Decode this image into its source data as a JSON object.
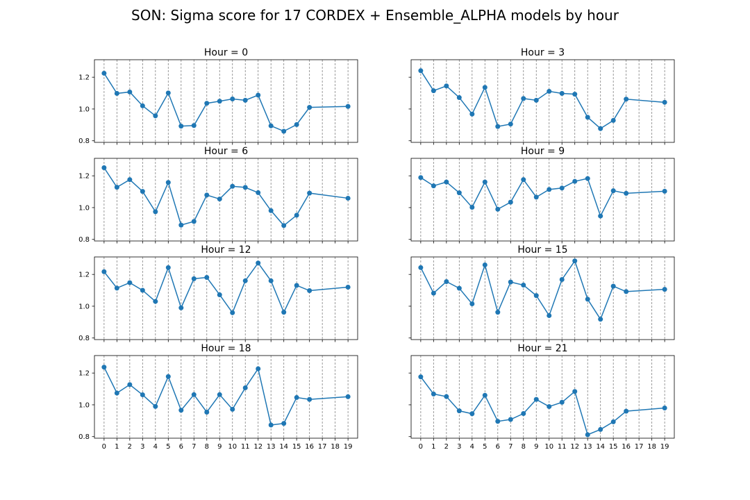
{
  "figure": {
    "suptitle": "SON: Sigma score for 17 CORDEX + Ensemble_ALPHA models by hour"
  },
  "chart_data": [
    {
      "type": "line",
      "title": "Hour = 0",
      "x": [
        0,
        1,
        2,
        3,
        4,
        5,
        6,
        7,
        8,
        9,
        10,
        11,
        12,
        13,
        14,
        15,
        16,
        19
      ],
      "values": [
        1.225,
        1.098,
        1.107,
        1.02,
        0.957,
        1.101,
        0.892,
        0.896,
        1.036,
        1.049,
        1.063,
        1.055,
        1.087,
        0.894,
        0.86,
        0.902,
        1.01,
        1.016
      ],
      "xticks": [
        0,
        1,
        2,
        3,
        4,
        5,
        6,
        7,
        8,
        9,
        10,
        11,
        12,
        13,
        14,
        15,
        16,
        17,
        18,
        19
      ],
      "yticks": [
        0.8,
        1.0,
        1.2
      ],
      "ylim": [
        0.79,
        1.31
      ],
      "xlim": [
        -0.75,
        19.75
      ]
    },
    {
      "type": "line",
      "title": "Hour = 3",
      "x": [
        0,
        1,
        2,
        3,
        4,
        5,
        6,
        7,
        8,
        9,
        10,
        11,
        12,
        13,
        14,
        15,
        16,
        19
      ],
      "values": [
        1.241,
        1.115,
        1.145,
        1.072,
        0.968,
        1.136,
        0.89,
        0.905,
        1.066,
        1.055,
        1.111,
        1.098,
        1.093,
        0.948,
        0.877,
        0.928,
        1.062,
        1.042
      ],
      "xticks": [
        0,
        1,
        2,
        3,
        4,
        5,
        6,
        7,
        8,
        9,
        10,
        11,
        12,
        13,
        14,
        15,
        16,
        17,
        18,
        19
      ],
      "yticks": [
        0.8,
        1.0,
        1.2
      ],
      "ylim": [
        0.79,
        1.31
      ],
      "xlim": [
        -0.75,
        19.75
      ]
    },
    {
      "type": "line",
      "title": "Hour = 6",
      "x": [
        0,
        1,
        2,
        3,
        4,
        5,
        6,
        7,
        8,
        9,
        10,
        11,
        12,
        13,
        14,
        15,
        16,
        19
      ],
      "values": [
        1.251,
        1.128,
        1.176,
        1.102,
        0.974,
        1.158,
        0.89,
        0.913,
        1.079,
        1.054,
        1.134,
        1.127,
        1.094,
        0.981,
        0.887,
        0.952,
        1.091,
        1.059
      ],
      "xticks": [
        0,
        1,
        2,
        3,
        4,
        5,
        6,
        7,
        8,
        9,
        10,
        11,
        12,
        13,
        14,
        15,
        16,
        17,
        18,
        19
      ],
      "yticks": [
        0.8,
        1.0,
        1.2
      ],
      "ylim": [
        0.79,
        1.31
      ],
      "xlim": [
        -0.75,
        19.75
      ]
    },
    {
      "type": "line",
      "title": "Hour = 9",
      "x": [
        0,
        1,
        2,
        3,
        4,
        5,
        6,
        7,
        8,
        9,
        10,
        11,
        12,
        13,
        14,
        15,
        16,
        19
      ],
      "values": [
        1.189,
        1.137,
        1.161,
        1.093,
        1.002,
        1.161,
        0.99,
        1.034,
        1.176,
        1.066,
        1.114,
        1.123,
        1.165,
        1.183,
        0.947,
        1.106,
        1.09,
        1.103
      ],
      "xticks": [
        0,
        1,
        2,
        3,
        4,
        5,
        6,
        7,
        8,
        9,
        10,
        11,
        12,
        13,
        14,
        15,
        16,
        17,
        18,
        19
      ],
      "yticks": [
        0.8,
        1.0,
        1.2
      ],
      "ylim": [
        0.79,
        1.31
      ],
      "xlim": [
        -0.75,
        19.75
      ]
    },
    {
      "type": "line",
      "title": "Hour = 12",
      "x": [
        0,
        1,
        2,
        3,
        4,
        5,
        6,
        7,
        8,
        9,
        10,
        11,
        12,
        13,
        14,
        15,
        16,
        19
      ],
      "values": [
        1.217,
        1.114,
        1.148,
        1.1,
        1.03,
        1.243,
        0.99,
        1.173,
        1.181,
        1.072,
        0.959,
        1.16,
        1.272,
        1.16,
        0.962,
        1.131,
        1.098,
        1.12
      ],
      "xticks": [
        0,
        1,
        2,
        3,
        4,
        5,
        6,
        7,
        8,
        9,
        10,
        11,
        12,
        13,
        14,
        15,
        16,
        17,
        18,
        19
      ],
      "yticks": [
        0.8,
        1.0,
        1.2
      ],
      "ylim": [
        0.79,
        1.31
      ],
      "xlim": [
        -0.75,
        19.75
      ]
    },
    {
      "type": "line",
      "title": "Hour = 15",
      "x": [
        0,
        1,
        2,
        3,
        4,
        5,
        6,
        7,
        8,
        9,
        10,
        11,
        12,
        13,
        14,
        15,
        16,
        19
      ],
      "values": [
        1.243,
        1.082,
        1.155,
        1.113,
        1.015,
        1.26,
        0.962,
        1.152,
        1.133,
        1.067,
        0.941,
        1.168,
        1.285,
        1.044,
        0.918,
        1.126,
        1.092,
        1.106
      ],
      "xticks": [
        0,
        1,
        2,
        3,
        4,
        5,
        6,
        7,
        8,
        9,
        10,
        11,
        12,
        13,
        14,
        15,
        16,
        17,
        18,
        19
      ],
      "yticks": [
        0.8,
        1.0,
        1.2
      ],
      "ylim": [
        0.79,
        1.31
      ],
      "xlim": [
        -0.75,
        19.75
      ]
    },
    {
      "type": "line",
      "title": "Hour = 18",
      "x": [
        0,
        1,
        2,
        3,
        4,
        5,
        6,
        7,
        8,
        9,
        10,
        11,
        12,
        13,
        14,
        15,
        16,
        19
      ],
      "values": [
        1.237,
        1.074,
        1.127,
        1.063,
        0.99,
        1.178,
        0.966,
        1.064,
        0.954,
        1.064,
        0.972,
        1.107,
        1.227,
        0.873,
        0.883,
        1.046,
        1.034,
        1.051
      ],
      "xticks": [
        0,
        1,
        2,
        3,
        4,
        5,
        6,
        7,
        8,
        9,
        10,
        11,
        12,
        13,
        14,
        15,
        16,
        17,
        18,
        19
      ],
      "yticks": [
        0.8,
        1.0,
        1.2
      ],
      "ylim": [
        0.79,
        1.31
      ],
      "xlim": [
        -0.75,
        19.75
      ]
    },
    {
      "type": "line",
      "title": "Hour = 21",
      "x": [
        0,
        1,
        2,
        3,
        4,
        5,
        6,
        7,
        8,
        9,
        10,
        11,
        12,
        13,
        14,
        15,
        16,
        19
      ],
      "values": [
        1.176,
        1.068,
        1.052,
        0.962,
        0.944,
        1.06,
        0.896,
        0.908,
        0.945,
        1.034,
        0.989,
        1.016,
        1.084,
        0.812,
        0.845,
        0.893,
        0.96,
        0.98
      ],
      "xticks": [
        0,
        1,
        2,
        3,
        4,
        5,
        6,
        7,
        8,
        9,
        10,
        11,
        12,
        13,
        14,
        15,
        16,
        17,
        18,
        19
      ],
      "yticks": [
        0.8,
        1.0,
        1.2
      ],
      "ylim": [
        0.79,
        1.31
      ],
      "xlim": [
        -0.75,
        19.75
      ]
    }
  ],
  "colors": {
    "series": "#1f77b4",
    "gridline": "#808080",
    "axis": "#000000"
  }
}
